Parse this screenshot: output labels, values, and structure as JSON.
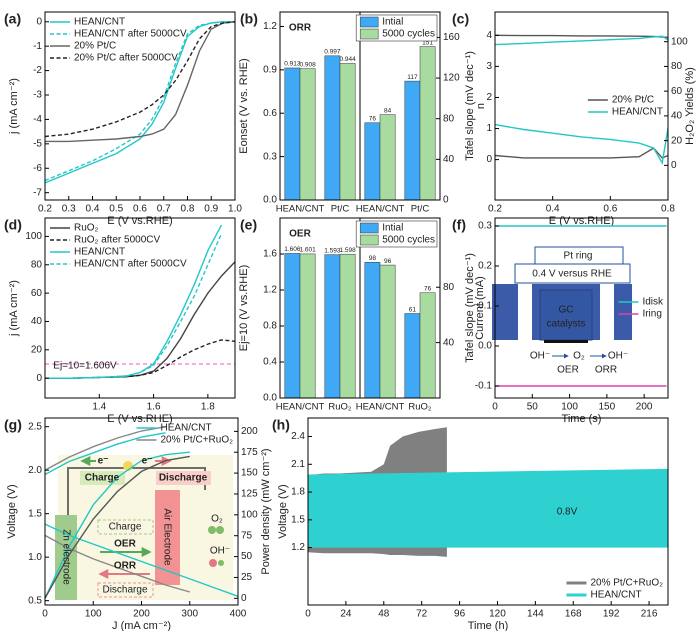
{
  "chart_data": [
    {
      "type": "line",
      "label": "(a)",
      "xlabel": "E (V vs.RHE)",
      "ylabel": "j (mA cm⁻²)",
      "xlim": [
        0.2,
        1.0
      ],
      "xticks": [
        0.2,
        0.3,
        0.4,
        0.5,
        0.6,
        0.7,
        0.8,
        0.9,
        {
          "value": 1,
          "label": "1.0"
        }
      ],
      "ylim": [
        -7.3,
        0.4
      ],
      "yticks": [
        -7,
        -6,
        -5,
        -4,
        -3,
        -2,
        -1,
        0
      ],
      "legend": "upper left",
      "x": [
        0.2,
        0.3,
        0.4,
        0.5,
        0.6,
        0.65,
        0.7,
        0.75,
        0.8,
        0.85,
        0.9,
        0.95,
        1.0
      ],
      "series": [
        {
          "name": "HEAN/CNT",
          "color": "#22c7c7",
          "values": [
            -6.6,
            -6.2,
            -5.8,
            -5.4,
            -4.8,
            -4.2,
            -3.3,
            -1.9,
            -0.6,
            -0.2,
            -0.05,
            0,
            0
          ]
        },
        {
          "name": "HEAN/CNT after 5000CV",
          "color": "#22c7c7",
          "dashed": true,
          "values": [
            -6.5,
            -6.1,
            -5.7,
            -5.2,
            -4.6,
            -4.0,
            -3.1,
            -1.7,
            -0.5,
            -0.15,
            -0.05,
            0,
            0
          ]
        },
        {
          "name": "20% Pt/C",
          "color": "#666666",
          "values": [
            -4.9,
            -4.9,
            -4.85,
            -4.8,
            -4.7,
            -4.6,
            -4.4,
            -3.8,
            -2.6,
            -1.2,
            -0.3,
            -0.05,
            0
          ]
        },
        {
          "name": "20% Pt/C after 5000CV",
          "color": "#222222",
          "dashed": true,
          "values": [
            -4.7,
            -4.6,
            -4.4,
            -4.1,
            -3.7,
            -3.4,
            -3.0,
            -2.4,
            -1.6,
            -0.7,
            -0.2,
            -0.05,
            0
          ]
        }
      ]
    },
    {
      "type": "bar",
      "label": "(b)",
      "annotations": [
        "ORR"
      ],
      "annotation_color": "#ff4fc0",
      "ylabel": "Eonset (V vs. RHE)",
      "y2label": "Tafel slope (mV dec⁻¹)",
      "categories": [
        "HEAN/CNT",
        "Pt/C",
        "HEAN/CNT",
        "Pt/C"
      ],
      "category_colors": [
        "#22c7c7",
        "#333333",
        "#22c7c7",
        "#333333"
      ],
      "category_axes": [
        "y",
        "y",
        "y2",
        "y2"
      ],
      "ylim": [
        0,
        1.3
      ],
      "yticks": [
        {
          "value": 0,
          "label": "0.0"
        },
        0.3,
        0.6,
        0.9,
        1.2
      ],
      "y2lim": [
        0,
        185
      ],
      "y2ticks": [
        0,
        40,
        80,
        120,
        160
      ],
      "legend": "upper right",
      "series": [
        {
          "name": "Intial",
          "color": "#3fa9f5",
          "values": [
            0.913,
            0.997,
            76,
            117
          ]
        },
        {
          "name": "5000 cycles",
          "color": "#a8dba0",
          "values": [
            0.908,
            0.944,
            84,
            151
          ]
        }
      ]
    },
    {
      "type": "line",
      "label": "(c)",
      "xlabel": "E (V vs.RHE)",
      "ylabel": "n",
      "y2label": "H₂O₂ Yields (%)",
      "xlim": [
        0.2,
        0.8
      ],
      "xticks": [
        0.2,
        0.4,
        0.6,
        0.8
      ],
      "ylim": [
        -1.3,
        4.75
      ],
      "yticks": [
        0,
        1,
        2,
        3,
        4
      ],
      "y2lim": [
        -28,
        124
      ],
      "y2ticks": [
        0,
        20,
        40,
        60,
        80,
        100
      ],
      "legend": "center right",
      "x": [
        0.2,
        0.3,
        0.4,
        0.5,
        0.6,
        0.7,
        0.75,
        0.78,
        0.8
      ],
      "series": [
        {
          "name": "20% Pt/C",
          "color": "#555555",
          "values": [
            4.0,
            3.99,
            3.99,
            3.98,
            3.98,
            3.97,
            3.96,
            3.95,
            3.93
          ]
        },
        {
          "name": "HEAN/CNT",
          "color": "#22c7c7",
          "values": [
            3.7,
            3.74,
            3.78,
            3.82,
            3.86,
            3.9,
            3.95,
            3.97,
            3.85
          ]
        },
        {
          "color": "#555555",
          "axis": "y2",
          "values": [
            8,
            6,
            6,
            6,
            6,
            7,
            14,
            6,
            8
          ]
        },
        {
          "color": "#22c7c7",
          "axis": "y2",
          "values": [
            33,
            29,
            26,
            23,
            21,
            18,
            14,
            2,
            30
          ]
        }
      ]
    },
    {
      "type": "line",
      "label": "(d)",
      "xlabel": "E (V vs.RHE)",
      "ylabel": "j (mA cm⁻²)",
      "xlim": [
        1.2,
        1.9
      ],
      "xticks": [
        1.4,
        1.6,
        1.8
      ],
      "ylim": [
        -14,
        113
      ],
      "yticks": [
        0,
        20,
        40,
        60,
        80,
        100
      ],
      "legend": "upper left",
      "hline": 10,
      "hline_color": "#ff4fc0",
      "annotations": [
        "Ej=10=1.606V"
      ],
      "annotation_color": "#ff4fc0",
      "x": [
        1.2,
        1.3,
        1.4,
        1.5,
        1.55,
        1.6,
        1.65,
        1.7,
        1.75,
        1.8,
        1.85,
        1.9
      ],
      "series": [
        {
          "name": "RuO₂",
          "color": "#444444",
          "values": [
            0,
            0,
            0.5,
            1,
            2,
            5,
            14,
            28,
            45,
            60,
            72,
            82
          ]
        },
        {
          "name": "RuO₂ after 5000CV",
          "color": "#222222",
          "dashed": true,
          "values": [
            0,
            0,
            0.5,
            1,
            2,
            4,
            9,
            15,
            20,
            24,
            27,
            26
          ]
        },
        {
          "name": "HEAN/CNT",
          "color": "#22c7c7",
          "values": [
            0,
            0,
            0.5,
            1.5,
            4,
            10,
            26,
            45,
            66,
            90,
            108,
            null
          ]
        },
        {
          "name": "HEAN/CNT after 5000CV",
          "color": "#22c7c7",
          "dashed": true,
          "values": [
            0,
            0,
            0.5,
            1.5,
            4,
            9,
            23,
            40,
            58,
            80,
            102,
            null
          ]
        }
      ]
    },
    {
      "type": "bar",
      "label": "(e)",
      "annotations": [
        "OER"
      ],
      "annotation_color": "#ff4fc0",
      "ylabel": "Ej=10 (V vs.RHE)",
      "y2label": "Tafel slope (mV dec⁻¹)",
      "categories": [
        "HEAN/CNT",
        "RuO₂",
        "HEAN/CNT",
        "RuO₂"
      ],
      "category_colors": [
        "#22c7c7",
        "#333333",
        "#22c7c7",
        "#333333"
      ],
      "category_axes": [
        "y",
        "y",
        "y2",
        "y2"
      ],
      "ylim": [
        0,
        2.0
      ],
      "yticks": [
        {
          "value": 0,
          "label": "0.0"
        },
        0.4,
        0.8,
        1.2,
        1.6
      ],
      "y2lim": [
        0,
        130
      ],
      "y2ticks": [
        40,
        80
      ],
      "legend": "upper right",
      "series": [
        {
          "name": "Intial",
          "color": "#3fa9f5",
          "values": [
            1.606,
            1.593,
            98,
            61
          ]
        },
        {
          "name": "5000 cycles",
          "color": "#a8dba0",
          "values": [
            1.601,
            1.598,
            96,
            76
          ]
        }
      ]
    },
    {
      "type": "line",
      "label": "(f)",
      "xlabel": "Time (s)",
      "ylabel": "Current (mA)",
      "xlim": [
        0,
        232
      ],
      "xticks": [
        0,
        50,
        100,
        150,
        200
      ],
      "ylim": [
        -0.13,
        0.32
      ],
      "yticks": [
        -0.1,
        {
          "value": 0,
          "label": "0.0"
        },
        0.1,
        0.2,
        0.3
      ],
      "legend": "center right",
      "annotations": [
        "Pt ring",
        "0.4 V versus RHE",
        "GC",
        "catalysts",
        "OH⁻",
        "O₂",
        "OH⁻",
        "OER",
        "ORR"
      ],
      "x": [
        0,
        230
      ],
      "series": [
        {
          "name": "Idisk",
          "color": "#22c7c7",
          "values": [
            0.3,
            0.3
          ]
        },
        {
          "name": "Iring",
          "color": "#e040b0",
          "values": [
            -0.1,
            -0.1
          ]
        }
      ]
    },
    {
      "type": "line",
      "label": "(g)",
      "xlabel": "J (mA cm⁻²)",
      "ylabel": "Voltage (V)",
      "y2label": "Power density (mW cm⁻²)",
      "xlim": [
        0,
        400
      ],
      "xticks": [
        0,
        100,
        200,
        300,
        400
      ],
      "ylim": [
        0.45,
        2.6
      ],
      "yticks": [
        0.5,
        {
          "value": 1,
          "label": "1.0"
        },
        1.5,
        {
          "value": 2,
          "label": "2.0"
        },
        2.5
      ],
      "y2lim": [
        -8,
        216
      ],
      "y2ticks": [
        0,
        25,
        50,
        75,
        100,
        125,
        150,
        175,
        200
      ],
      "legend": "upper right",
      "annotations": [
        "e⁻",
        "e⁻",
        "Charge",
        "Discharge",
        "Charge",
        "OER",
        "ORR",
        "Discharge",
        "Zn electrode",
        "Air Electrode",
        "O₂",
        "OH⁻"
      ],
      "x": [
        0,
        50,
        100,
        150,
        200,
        250,
        300,
        350,
        400
      ],
      "series": [
        {
          "name": "HEAN/CNT",
          "color": "#22c7c7",
          "values": [
            1.95,
            2.1,
            2.2,
            2.3,
            2.38,
            2.43,
            null,
            null,
            null
          ]
        },
        {
          "name": "20% Pt/C+RuO₂",
          "color": "#888888",
          "values": [
            2.0,
            2.15,
            2.27,
            2.37,
            2.45,
            2.5,
            null,
            null,
            null
          ]
        },
        {
          "color": "#22c7c7",
          "values": [
            1.38,
            1.25,
            1.15,
            1.05,
            0.95,
            0.85,
            0.75,
            0.65,
            0.55
          ]
        },
        {
          "color": "#888888",
          "values": [
            1.25,
            1.1,
            0.98,
            0.88,
            0.78,
            0.68,
            0.6,
            null,
            null
          ]
        },
        {
          "color": "#22c7c7",
          "axis": "y2",
          "values": [
            0,
            62,
            112,
            145,
            165,
            172,
            175,
            null,
            null
          ]
        },
        {
          "color": "#555555",
          "axis": "y2",
          "values": [
            0,
            52,
            95,
            128,
            152,
            165,
            170,
            null,
            null
          ]
        }
      ]
    },
    {
      "type": "band",
      "label": "(h)",
      "xlabel": "Time (h)",
      "ylabel": "Voltage (V)",
      "xlim": [
        0,
        228
      ],
      "xticks": [
        0,
        24,
        48,
        72,
        96,
        120,
        144,
        168,
        192,
        216
      ],
      "ylim": [
        0.58,
        2.6
      ],
      "yticks": [
        1.2,
        1.5,
        1.8,
        2.1,
        2.4
      ],
      "legend": "lower right",
      "annotations": [
        "0.8V"
      ],
      "annotation_color": "#e040b0",
      "series": [
        {
          "name": "20% Pt/C+RuO₂",
          "color": "#808080",
          "x": [
            0,
            10,
            20,
            40,
            48,
            52,
            60,
            70,
            80,
            88
          ],
          "values": [
            1.98,
            2.0,
            2.0,
            2.02,
            2.1,
            2.3,
            2.4,
            2.45,
            2.48,
            2.5
          ],
          "lower": [
            1.15,
            1.14,
            1.14,
            1.14,
            1.13,
            1.12,
            1.12,
            1.11,
            1.11,
            1.1
          ]
        },
        {
          "name": "HEAN/CNT",
          "color": "#2fd0d0",
          "x": [
            0,
            228
          ],
          "values": [
            1.99,
            2.05
          ],
          "lower": [
            1.2,
            1.2
          ]
        }
      ]
    }
  ]
}
